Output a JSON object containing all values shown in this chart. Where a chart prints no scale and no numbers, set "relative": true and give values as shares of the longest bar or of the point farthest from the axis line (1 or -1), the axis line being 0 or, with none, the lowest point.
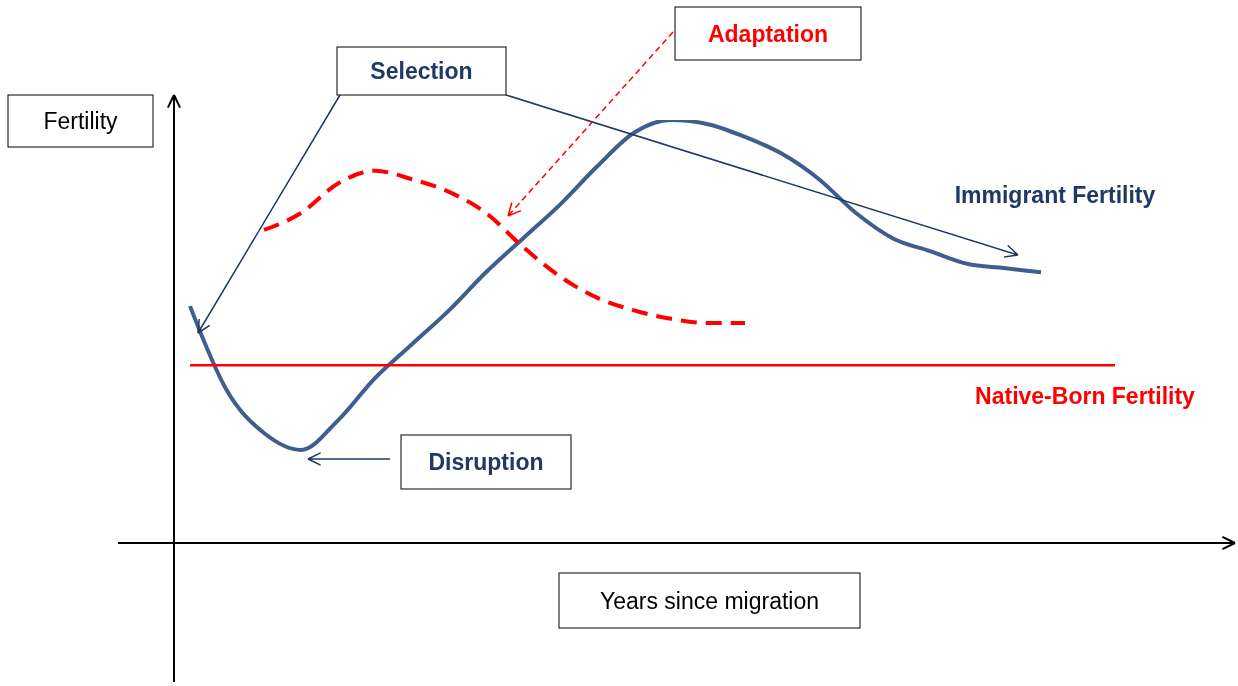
{
  "chart_data": {
    "type": "line",
    "relative": true,
    "xlabel": "Years since migration",
    "ylabel": "Fertility",
    "marker": "none",
    "categories": [
      null,
      null,
      null,
      null,
      null,
      null,
      null,
      null,
      null,
      null,
      null,
      null,
      null,
      null,
      null,
      null,
      null,
      null,
      null,
      null,
      null,
      null,
      null,
      null,
      null,
      null
    ],
    "series": [
      {
        "name": "Immigrant Fertility",
        "color": "#3d5f8f",
        "line_style": "solid",
        "values": [
          0.56,
          0.36,
          0.26,
          0.22,
          0.29,
          0.39,
          0.47,
          0.55,
          0.64,
          0.72,
          0.8,
          0.89,
          0.97,
          1.0,
          0.99,
          0.96,
          0.92,
          0.86,
          0.78,
          0.72,
          0.69,
          0.66,
          0.65,
          0.64,
          null,
          null
        ]
      },
      {
        "color": "#ff0000",
        "line_style": "dashed",
        "values": [
          null,
          null,
          0.74,
          0.78,
          0.85,
          0.88,
          0.86,
          0.83,
          0.78,
          0.7,
          0.63,
          0.58,
          0.55,
          0.53,
          0.52,
          0.52,
          null,
          null,
          null,
          null,
          null,
          null,
          null,
          null,
          null,
          null
        ]
      },
      {
        "name": "Native-Born Fertility",
        "color": "#ff0000",
        "line_style": "solid",
        "values": [
          0.42,
          0.42,
          0.42,
          0.42,
          0.42,
          0.42,
          0.42,
          0.42,
          0.42,
          0.42,
          0.42,
          0.42,
          0.42,
          0.42,
          0.42,
          0.42,
          0.42,
          0.42,
          0.42,
          0.42,
          0.42,
          0.42,
          0.42,
          0.42,
          0.42,
          0.42
        ]
      }
    ],
    "annotations": [
      "Selection",
      "Adaptation",
      "Disruption"
    ]
  }
}
